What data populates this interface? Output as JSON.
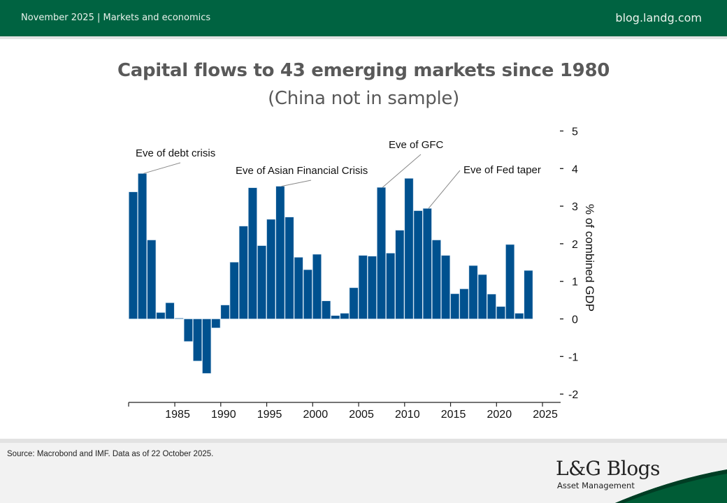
{
  "header": {
    "left_text": "November 2025 | Markets and economics",
    "right_text": "blog.landg.com",
    "brand_color": "#006341"
  },
  "title": "Capital flows to 43 emerging markets since 1980",
  "subtitle": "(China not in sample)",
  "chart_data": {
    "type": "bar",
    "title": "Capital flows to 43 emerging markets since 1980",
    "subtitle": "(China not in sample)",
    "xlabel": "",
    "ylabel": "% of combined GDP",
    "bar_color": "#00518f",
    "categories": [
      1980,
      1981,
      1982,
      1983,
      1984,
      1985,
      1986,
      1987,
      1988,
      1989,
      1990,
      1991,
      1992,
      1993,
      1994,
      1995,
      1996,
      1997,
      1998,
      1999,
      2000,
      2001,
      2002,
      2003,
      2004,
      2005,
      2006,
      2007,
      2008,
      2009,
      2010,
      2011,
      2012,
      2013,
      2014,
      2015,
      2016,
      2017,
      2018,
      2019,
      2020,
      2021,
      2022,
      2023
    ],
    "values": [
      3.38,
      3.87,
      2.1,
      0.17,
      0.43,
      0.02,
      -0.6,
      -1.12,
      -1.45,
      -0.24,
      0.37,
      1.51,
      2.47,
      3.49,
      1.95,
      2.65,
      3.53,
      2.71,
      1.64,
      1.31,
      1.72,
      0.48,
      0.09,
      0.15,
      0.83,
      1.69,
      1.67,
      3.5,
      1.75,
      2.36,
      3.74,
      2.88,
      2.94,
      2.1,
      1.69,
      0.67,
      0.8,
      1.42,
      1.18,
      0.66,
      0.33,
      1.98,
      0.15,
      1.29
    ],
    "xlim": [
      1980,
      2026.5
    ],
    "ylim": [
      -2,
      5
    ],
    "x_ticks": [
      1985,
      1990,
      1995,
      2000,
      2005,
      2010,
      2015,
      2020,
      2025
    ],
    "y_ticks": [
      5,
      4,
      3,
      2,
      1,
      0,
      -1,
      -2
    ],
    "y_axis_side": "right",
    "grid": false,
    "annotations": [
      {
        "text": "Eve of debt crisis",
        "year": 1981
      },
      {
        "text": "Eve of Asian Financial Crisis",
        "year": 1996
      },
      {
        "text": "Eve of GFC",
        "year": 2007
      },
      {
        "text": "Eve of Fed taper",
        "year": 2012
      }
    ]
  },
  "footer": {
    "source": "Source: Macrobond and IMF. Data as of 22 October 2025.",
    "logo_main": "L&G Blogs",
    "logo_sub": "Asset Management"
  }
}
